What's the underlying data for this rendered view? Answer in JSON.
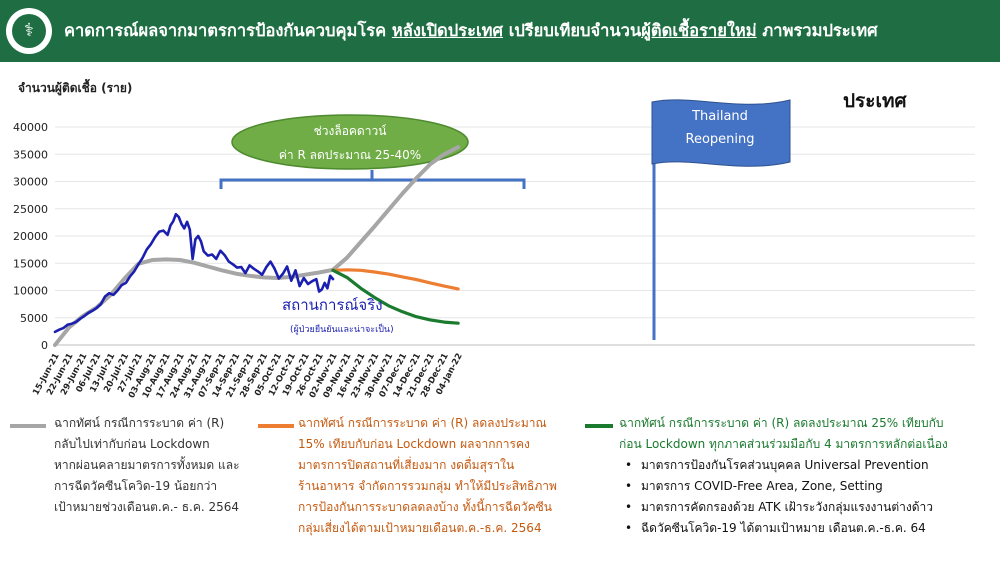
{
  "header": {
    "title_part1": "คาดการณ์ผลจากมาตรการป้องกันควบคุมโรค ",
    "title_part2": "หลังเปิดประเทศ",
    "title_part3": " เปรียบเทียบจำนวน",
    "title_part4": "ผู้ติดเชื้อรายใหม่",
    "title_part5": " ภาพรวมประเทศ",
    "logo_icon": "ministry-seal-icon"
  },
  "chart_data": {
    "type": "line",
    "title": "ประเทศ",
    "ylabel": "จำนวนผู้ติดเชื้อ (ราย)",
    "ylim": [
      0,
      40000
    ],
    "yticks": [
      0,
      5000,
      10000,
      15000,
      20000,
      25000,
      30000,
      35000,
      40000
    ],
    "categories": [
      "15-Jun-21",
      "22-Jun-21",
      "29-Jun-21",
      "06-Jul-21",
      "13-Jul-21",
      "20-Jul-21",
      "27-Jul-21",
      "03-Aug-21",
      "10-Aug-21",
      "17-Aug-21",
      "24-Aug-21",
      "31-Aug-21",
      "07-Sep-21",
      "14-Sep-21",
      "21-Sep-21",
      "28-Sep-21",
      "05-Oct-21",
      "12-Oct-21",
      "19-Oct-21",
      "26-Oct-21",
      "02-Nov-21",
      "09-Nov-21",
      "16-Nov-21",
      "23-Nov-21",
      "30-Nov-21",
      "07-Dec-21",
      "14-Dec-21",
      "21-Dec-21",
      "28-Dec-21",
      "04-Jan-22"
    ],
    "series": [
      {
        "name": "สถานการณ์จริง",
        "sublabel": "(ผู้ป่วยยืนยันและน่าจะเป็น)",
        "color": "#1a1fb0",
        "x": [
          0,
          0.3,
          0.6,
          0.9,
          1.2,
          1.5,
          1.8,
          2.1,
          2.4,
          2.7,
          3.0,
          3.3,
          3.6,
          3.9,
          4.2,
          4.5,
          4.8,
          5.1,
          5.4,
          5.7,
          6.0,
          6.3,
          6.6,
          6.9,
          7.2,
          7.5,
          7.8,
          8.1,
          8.3,
          8.5,
          8.7,
          8.9,
          9.1,
          9.3,
          9.5,
          9.7,
          9.9,
          10.1,
          10.3,
          10.5,
          10.7,
          11.0,
          11.3,
          11.6,
          11.9,
          12.2,
          12.5,
          12.8,
          13.1,
          13.4,
          13.7,
          14.0,
          14.3,
          14.6,
          14.9,
          15.2,
          15.5,
          15.8,
          16.1,
          16.4,
          16.7,
          17.0,
          17.3,
          17.6,
          17.9,
          18.2,
          18.5,
          18.8,
          19.0,
          19.2,
          19.4,
          19.6,
          19.8,
          20.0
        ],
        "y": [
          2400,
          2800,
          3100,
          3700,
          3900,
          4200,
          4800,
          5300,
          5900,
          6300,
          6800,
          7500,
          8900,
          9500,
          9200,
          10000,
          11000,
          11400,
          12600,
          13500,
          14800,
          16000,
          17500,
          18500,
          19800,
          20800,
          21000,
          20200,
          21900,
          22700,
          24000,
          23500,
          22200,
          21400,
          22600,
          21200,
          15800,
          19400,
          20000,
          19000,
          17200,
          16400,
          16600,
          15800,
          17300,
          16500,
          15300,
          14800,
          14200,
          14300,
          13200,
          14600,
          14000,
          13500,
          12900,
          14300,
          15300,
          14000,
          12200,
          13100,
          14400,
          11800,
          13700,
          10800,
          12300,
          11200,
          11700,
          12100,
          9800,
          10200,
          11400,
          10400,
          12700,
          12100
        ]
      },
      {
        "name": "ฉากทัศน์ กรณีการระบาด ค่า (R) กลับไปเท่ากับก่อน Lockdown",
        "color": "#a6a6a6",
        "x": [
          0,
          1,
          2,
          3,
          4,
          5,
          6,
          7,
          8,
          9,
          10,
          11,
          12,
          13,
          14,
          15,
          16,
          17,
          18,
          19,
          20,
          21,
          22,
          23,
          24,
          25,
          26,
          27,
          28,
          29
        ],
        "y": [
          0,
          3200,
          5300,
          6900,
          9200,
          12200,
          14900,
          15600,
          15700,
          15600,
          15100,
          14400,
          13700,
          13100,
          12700,
          12400,
          12300,
          12500,
          12900,
          13300,
          13800,
          16000,
          18900,
          21800,
          24800,
          27800,
          30600,
          33200,
          35000,
          36300
        ]
      },
      {
        "name": "ฉากทัศน์ กรณีการระบาด ค่า (R) ลดลงประมาณ 15% เทียบกับก่อน Lockdown",
        "color": "#ed7d31",
        "x": [
          20,
          21,
          22,
          23,
          24,
          25,
          26,
          27,
          28,
          29
        ],
        "y": [
          13700,
          13800,
          13700,
          13400,
          13000,
          12500,
          12000,
          11400,
          10800,
          10300
        ]
      },
      {
        "name": "ฉากทัศน์ กรณีการระบาด ค่า (R) ลดลงประมาณ 25% เทียบกับก่อน Lockdown",
        "color": "#1a7a2e",
        "x": [
          20,
          21,
          22,
          23,
          24,
          25,
          26,
          27,
          28,
          29
        ],
        "y": [
          13700,
          12400,
          10400,
          8700,
          7200,
          6100,
          5200,
          4600,
          4200,
          4000
        ]
      }
    ],
    "annotations": {
      "lockdown_line1": "ช่วงล็อคดาวน์",
      "lockdown_line2": "ค่า R ลดประมาณ 25-40%",
      "flag_line1": "Thailand",
      "flag_line2": "Reopening",
      "actual_label": "สถานการณ์จริง",
      "actual_sublabel": "(ผู้ป่วยยืนยันและน่าจะเป็น)"
    },
    "colors": {
      "actual": "#1a1fb0",
      "flag": "#4472c4",
      "lockdown_ellipse": "#70ad47",
      "bracket": "#4472c4"
    }
  },
  "notes": {
    "gray": [
      "ฉากทัศน์ กรณีการระบาด ค่า (R)",
      "กลับไปเท่ากับก่อน Lockdown",
      "หากผ่อนคลายมาตรการทั้งหมด และ",
      "การฉีดวัคซีนโควิด-19 น้อยกว่า",
      "เป้าหมายช่วงเดือนต.ค.- ธ.ค. 2564"
    ],
    "orange": [
      "ฉากทัศน์ กรณีการระบาด ค่า (R) ลดลงประมาณ",
      "15% เทียบกับก่อน Lockdown ผลจากการคง",
      "มาตรการปิดสถานที่เสี่ยงมาก งดดื่มสุราใน",
      "ร้านอาหาร จำกัดการรวมกลุ่ม ทำให้มีประสิทธิภาพ",
      "การป้องกันการระบาดลดลงบ้าง ทั้งนี้การฉีดวัคซีน",
      "กลุ่มเสี่ยงได้ตามเป้าหมายเดือนต.ค.-ธ.ค. 2564"
    ],
    "green": [
      "ฉากทัศน์ กรณีการระบาด ค่า (R) ลดลงประมาณ 25% เทียบกับ",
      "ก่อน Lockdown ทุกภาคส่วนร่วมมือกับ 4 มาตรการหลักต่อเนื่อง"
    ],
    "green_bullets": [
      "มาตรการป้องกันโรคส่วนบุคคล Universal Prevention",
      "มาตรการ COVID-Free Area, Zone, Setting",
      "มาตรการคัดกรองด้วย ATK เฝ้าระวังกลุ่มแรงงานต่างด้าว",
      "ฉีดวัคซีนโควิด-19 ได้ตามเป้าหมาย เดือนต.ค.-ธ.ค. 64"
    ]
  }
}
